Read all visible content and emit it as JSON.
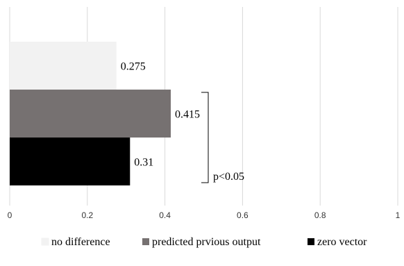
{
  "chart_data": {
    "type": "bar",
    "orientation": "horizontal",
    "xlim": [
      0,
      1
    ],
    "x_ticks": [
      "0",
      "0.2",
      "0.4",
      "0.6",
      "0.8",
      "1"
    ],
    "grid": "vertical",
    "legend_position": "bottom",
    "series": [
      {
        "name": "no difference",
        "values": [
          0.275
        ],
        "label": "0.275",
        "color": "#f2f2f2"
      },
      {
        "name": "predicted prvious output",
        "values": [
          0.415
        ],
        "label": "0.415",
        "color": "#767171"
      },
      {
        "name": "zero vector",
        "values": [
          0.31
        ],
        "label": "0.31",
        "color": "#000000"
      }
    ],
    "annotation": {
      "text": "p<0.05",
      "between": [
        "predicted prvious output",
        "zero vector"
      ]
    }
  }
}
